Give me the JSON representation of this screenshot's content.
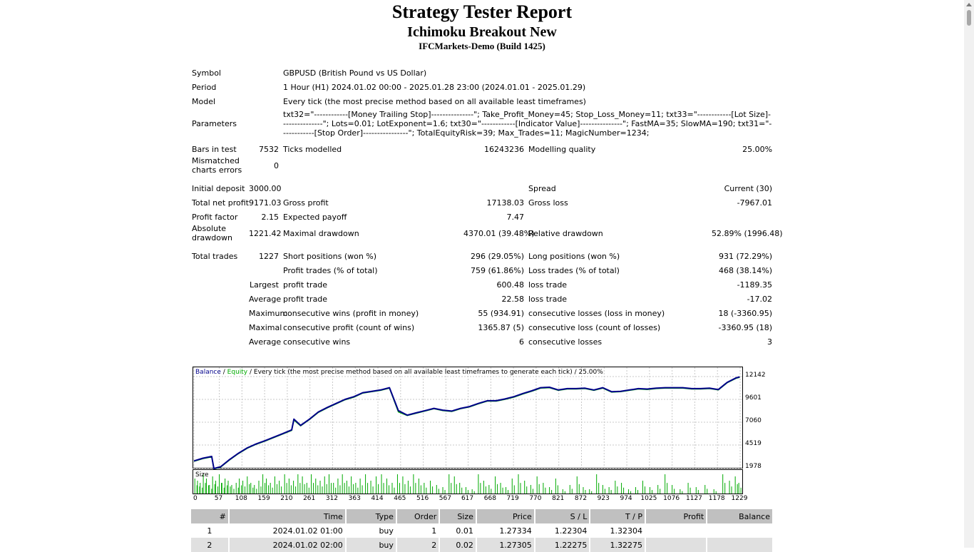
{
  "header": {
    "title": "Strategy Tester Report",
    "expert": "Ichimoku Breakout New",
    "server": "IFCMarkets-Demo (Build 1425)"
  },
  "summary": {
    "symbol_label": "Symbol",
    "symbol_value": "GBPUSD (British Pound vs US Dollar)",
    "period_label": "Period",
    "period_value": "1 Hour (H1) 2024.01.02 00:00 - 2025.01.28 23:00 (2024.01.01 - 2025.01.29)",
    "model_label": "Model",
    "model_value": "Every tick (the most precise method based on all available least timeframes)",
    "parameters_label": "Parameters",
    "parameters_value": "txt32=\"------------[Money Trailing Stop]---------------\"; Take_Profit_Money=45; Stop_Loss_Money=11; txt33=\"------------[Lot Size]---------------\"; Lots=0.01; LotExponent=1.6; txt30=\"------------[Indicator Value]---------------\"; FastMA=35; SlowMA=190; txt31=\"------------[Stop Order]----------------\"; TotalEquityRisk=39; Max_Trades=11; MagicNumber=1234;",
    "bars_label": "Bars in test",
    "bars_value": "7532",
    "ticks_label": "Ticks modelled",
    "ticks_value": "16243236",
    "quality_label": "Modelling quality",
    "quality_value": "25.00%",
    "mismatch_label": "Mismatched charts errors",
    "mismatch_value": "0",
    "deposit_label": "Initial deposit",
    "deposit_value": "3000.00",
    "spread_label": "Spread",
    "spread_value": "Current (30)",
    "netprofit_label": "Total net profit",
    "netprofit_value": "9171.03",
    "grossprofit_label": "Gross profit",
    "grossprofit_value": "17138.03",
    "grossloss_label": "Gross loss",
    "grossloss_value": "-7967.01",
    "pf_label": "Profit factor",
    "pf_value": "2.15",
    "payoff_label": "Expected payoff",
    "payoff_value": "7.47",
    "absdd_label": "Absolute drawdown",
    "absdd_value": "1221.42",
    "maxdd_label": "Maximal drawdown",
    "maxdd_value": "4370.01 (39.48%)",
    "reldd_label": "Relative drawdown",
    "reldd_value": "52.89% (1996.48)",
    "trades_label": "Total trades",
    "trades_value": "1227",
    "short_label": "Short positions (won %)",
    "short_value": "296 (29.05%)",
    "long_label": "Long positions (won %)",
    "long_value": "931 (72.29%)",
    "profittrades_label": "Profit trades (% of total)",
    "profittrades_value": "759 (61.86%)",
    "losstrades_label": "Loss trades (% of total)",
    "losstrades_value": "468 (38.14%)",
    "largest_label": "Largest",
    "largest_profit_label": "profit trade",
    "largest_profit_value": "600.48",
    "largest_loss_label": "loss trade",
    "largest_loss_value": "-1189.35",
    "average_label": "Average",
    "average_profit_label": "profit trade",
    "average_profit_value": "22.58",
    "average_loss_label": "loss trade",
    "average_loss_value": "-17.02",
    "maximum_label": "Maximum",
    "max_wins_label": "consecutive wins (profit in money)",
    "max_wins_value": "55 (934.91)",
    "max_losses_label": "consecutive losses (loss in money)",
    "max_losses_value": "18 (-3360.95)",
    "maximal_label": "Maximal",
    "maximal_profit_label": "consecutive profit (count of wins)",
    "maximal_profit_value": "1365.87 (5)",
    "maximal_loss_label": "consecutive loss (count of losses)",
    "maximal_loss_value": "-3360.95 (18)",
    "avg2_label": "Average",
    "avg_wins_label": "consecutive wins",
    "avg_wins_value": "6",
    "avg_losses_label": "consecutive losses",
    "avg_losses_value": "3"
  },
  "chart_data": {
    "type": "line",
    "legend": {
      "balance": "Balance",
      "sep1": " / ",
      "equity": "Equity",
      "rest": " / Every tick (the most precise method based on all available least timeframes to generate each tick) / 25.00%"
    },
    "series": [
      {
        "name": "Balance",
        "color": "#00008b",
        "x": [
          0,
          20,
          40,
          45,
          60,
          80,
          100,
          120,
          140,
          160,
          180,
          200,
          220,
          225,
          240,
          260,
          280,
          300,
          320,
          340,
          360,
          380,
          400,
          420,
          440,
          460,
          480,
          500,
          520,
          540,
          560,
          580,
          600,
          620,
          640,
          660,
          680,
          700,
          720,
          740,
          760,
          780,
          800,
          820,
          840,
          860,
          880,
          900,
          920,
          940,
          960,
          980,
          1000,
          1020,
          1040,
          1060,
          1080,
          1100,
          1120,
          1140,
          1160,
          1180,
          1200,
          1220,
          1228
        ],
        "y": [
          2750,
          3050,
          3250,
          1900,
          2100,
          2900,
          3600,
          4200,
          4650,
          5000,
          5400,
          5800,
          6200,
          7400,
          6700,
          7400,
          8200,
          8700,
          9150,
          9600,
          9900,
          10350,
          10500,
          10650,
          10900,
          8350,
          7850,
          8100,
          8350,
          8600,
          8400,
          8300,
          8600,
          8800,
          9150,
          9450,
          9450,
          9650,
          9900,
          10250,
          10550,
          10900,
          10950,
          10650,
          10800,
          10800,
          10850,
          10650,
          10900,
          10450,
          10500,
          10650,
          10800,
          10750,
          10850,
          10900,
          10900,
          10900,
          10800,
          10800,
          10850,
          10700,
          11500,
          12000,
          12100
        ]
      },
      {
        "name": "Equity",
        "color": "#00aa00",
        "x": [
          0,
          20,
          40,
          45,
          60,
          80,
          100,
          120,
          140,
          160,
          180,
          200,
          220,
          225,
          240,
          260,
          280,
          300,
          320,
          340,
          360,
          380,
          400,
          420,
          440,
          460,
          480,
          500,
          520,
          540,
          560,
          580,
          600,
          620,
          640,
          660,
          680,
          700,
          720,
          740,
          760,
          780,
          800,
          820,
          840,
          860,
          880,
          900,
          920,
          940,
          960,
          980,
          1000,
          1020,
          1040,
          1060,
          1080,
          1100,
          1120,
          1140,
          1160,
          1180,
          1200,
          1220,
          1228
        ],
        "y": [
          2700,
          3000,
          3200,
          1850,
          2050,
          2850,
          3550,
          4150,
          4600,
          4950,
          5350,
          5750,
          6150,
          7300,
          6650,
          7350,
          8150,
          8650,
          9100,
          9550,
          9850,
          10300,
          10450,
          10600,
          10850,
          8200,
          7800,
          8050,
          8300,
          8550,
          8350,
          8250,
          8550,
          8750,
          9100,
          9400,
          9400,
          9600,
          9850,
          10200,
          10500,
          10850,
          10900,
          10600,
          10750,
          10750,
          10800,
          10600,
          10850,
          10400,
          10450,
          10600,
          10750,
          10700,
          10800,
          10850,
          10850,
          10850,
          10750,
          10750,
          10800,
          10650,
          11450,
          11950,
          12050
        ]
      }
    ],
    "ylim": [
      1978,
      12142
    ],
    "xlim": [
      0,
      1229
    ],
    "yticks": [
      "12142",
      "9601",
      "7060",
      "4519",
      "1978"
    ],
    "xticks": [
      "0",
      "57",
      "108",
      "159",
      "210",
      "261",
      "312",
      "363",
      "414",
      "465",
      "516",
      "567",
      "617",
      "668",
      "719",
      "770",
      "821",
      "872",
      "923",
      "974",
      "1025",
      "1076",
      "1127",
      "1178",
      "1229"
    ],
    "size_label": "Size",
    "size_color": "#00aa00",
    "size_bars": [
      {
        "x": 2,
        "v": 0.7
      },
      {
        "x": 8,
        "v": 0.6
      },
      {
        "x": 14,
        "v": 0.5
      },
      {
        "x": 21,
        "v": 0.9
      },
      {
        "x": 28,
        "v": 0.7
      },
      {
        "x": 35,
        "v": 0.4
      },
      {
        "x": 42,
        "v": 0.8
      },
      {
        "x": 49,
        "v": 0.6
      },
      {
        "x": 57,
        "v": 0.9
      },
      {
        "x": 63,
        "v": 0.5
      },
      {
        "x": 70,
        "v": 0.7
      },
      {
        "x": 77,
        "v": 0.6
      },
      {
        "x": 85,
        "v": 0.4
      },
      {
        "x": 95,
        "v": 0.5
      },
      {
        "x": 102,
        "v": 0.7
      },
      {
        "x": 110,
        "v": 0.6
      },
      {
        "x": 120,
        "v": 0.8
      },
      {
        "x": 128,
        "v": 0.5
      },
      {
        "x": 136,
        "v": 0.4
      },
      {
        "x": 146,
        "v": 0.6
      },
      {
        "x": 155,
        "v": 0.9
      },
      {
        "x": 163,
        "v": 0.7
      },
      {
        "x": 172,
        "v": 0.5
      },
      {
        "x": 182,
        "v": 0.8
      },
      {
        "x": 192,
        "v": 0.6
      },
      {
        "x": 204,
        "v": 0.9
      },
      {
        "x": 214,
        "v": 0.7
      },
      {
        "x": 224,
        "v": 0.6
      },
      {
        "x": 234,
        "v": 0.9
      },
      {
        "x": 244,
        "v": 0.8
      },
      {
        "x": 254,
        "v": 0.5
      },
      {
        "x": 264,
        "v": 0.9
      },
      {
        "x": 274,
        "v": 0.7
      },
      {
        "x": 284,
        "v": 0.6
      },
      {
        "x": 294,
        "v": 0.8
      },
      {
        "x": 304,
        "v": 0.9
      },
      {
        "x": 314,
        "v": 0.5
      },
      {
        "x": 324,
        "v": 0.7
      },
      {
        "x": 334,
        "v": 0.9
      },
      {
        "x": 344,
        "v": 0.6
      },
      {
        "x": 354,
        "v": 0.8
      },
      {
        "x": 364,
        "v": 0.5
      },
      {
        "x": 374,
        "v": 0.7
      },
      {
        "x": 386,
        "v": 0.9
      },
      {
        "x": 398,
        "v": 0.6
      },
      {
        "x": 410,
        "v": 0.8
      },
      {
        "x": 422,
        "v": 0.9
      },
      {
        "x": 434,
        "v": 0.7
      },
      {
        "x": 446,
        "v": 0.5
      },
      {
        "x": 458,
        "v": 0.9
      },
      {
        "x": 470,
        "v": 0.8
      },
      {
        "x": 482,
        "v": 0.6
      },
      {
        "x": 494,
        "v": 0.9
      },
      {
        "x": 506,
        "v": 0.7
      },
      {
        "x": 518,
        "v": 0.5
      },
      {
        "x": 532,
        "v": 0.6
      },
      {
        "x": 546,
        "v": 0.4
      },
      {
        "x": 560,
        "v": 0.3
      },
      {
        "x": 574,
        "v": 0.9
      },
      {
        "x": 586,
        "v": 0.8
      },
      {
        "x": 598,
        "v": 0.5
      },
      {
        "x": 612,
        "v": 0.3
      },
      {
        "x": 626,
        "v": 0.2
      },
      {
        "x": 640,
        "v": 0.9
      },
      {
        "x": 652,
        "v": 0.6
      },
      {
        "x": 664,
        "v": 0.4
      },
      {
        "x": 678,
        "v": 0.8
      },
      {
        "x": 690,
        "v": 0.5
      },
      {
        "x": 702,
        "v": 0.3
      },
      {
        "x": 716,
        "v": 0.7
      },
      {
        "x": 730,
        "v": 0.9
      },
      {
        "x": 744,
        "v": 0.6
      },
      {
        "x": 758,
        "v": 0.4
      },
      {
        "x": 772,
        "v": 0.8
      },
      {
        "x": 786,
        "v": 0.5
      },
      {
        "x": 800,
        "v": 0.3
      },
      {
        "x": 814,
        "v": 0.7
      },
      {
        "x": 830,
        "v": 0.2
      },
      {
        "x": 846,
        "v": 0.4
      },
      {
        "x": 862,
        "v": 0.8
      },
      {
        "x": 876,
        "v": 0.3
      },
      {
        "x": 890,
        "v": 0.2
      },
      {
        "x": 906,
        "v": 0.9
      },
      {
        "x": 920,
        "v": 0.4
      },
      {
        "x": 934,
        "v": 0.3
      },
      {
        "x": 948,
        "v": 0.6
      },
      {
        "x": 962,
        "v": 0.5
      },
      {
        "x": 978,
        "v": 0.2
      },
      {
        "x": 994,
        "v": 0.3
      },
      {
        "x": 1010,
        "v": 0.6
      },
      {
        "x": 1026,
        "v": 0.3
      },
      {
        "x": 1044,
        "v": 0.4
      },
      {
        "x": 1060,
        "v": 0.9
      },
      {
        "x": 1076,
        "v": 0.4
      },
      {
        "x": 1094,
        "v": 0.2
      },
      {
        "x": 1112,
        "v": 0.5
      },
      {
        "x": 1130,
        "v": 0.3
      },
      {
        "x": 1150,
        "v": 0.4
      },
      {
        "x": 1170,
        "v": 0.2
      },
      {
        "x": 1190,
        "v": 0.9
      },
      {
        "x": 1205,
        "v": 0.6
      },
      {
        "x": 1218,
        "v": 0.8
      },
      {
        "x": 1226,
        "v": 0.5
      }
    ]
  },
  "trades": {
    "columns": [
      "#",
      "Time",
      "Type",
      "Order",
      "Size",
      "Price",
      "S / L",
      "T / P",
      "Profit",
      "Balance"
    ],
    "rows": [
      [
        "1",
        "2024.01.02 01:00",
        "buy",
        "1",
        "0.01",
        "1.27334",
        "1.22304",
        "1.32304",
        "",
        ""
      ],
      [
        "2",
        "2024.01.02 02:00",
        "buy",
        "2",
        "0.02",
        "1.27305",
        "1.22275",
        "1.32275",
        "",
        ""
      ]
    ]
  }
}
